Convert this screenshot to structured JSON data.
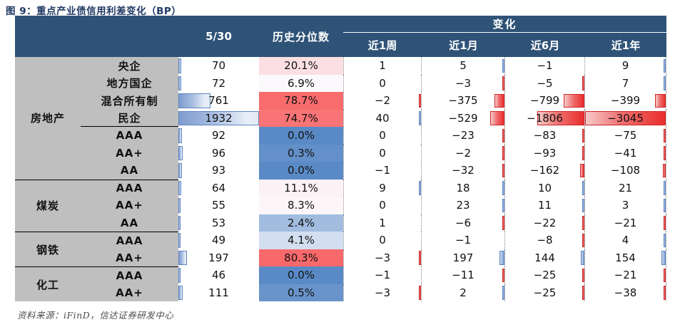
{
  "title": "图 9：重点产业债信用利差变化（BP）",
  "header": {
    "date_col": "5/30",
    "percentile_col": "历史分位数",
    "change_group": "变化",
    "change_cols": [
      "近1周",
      "近1月",
      "近6月",
      "近1年"
    ]
  },
  "groups": [
    {
      "name": "房地产",
      "rows": [
        {
          "label": "央企",
          "value": 70,
          "pct_label": "20.1%",
          "pct_value": 20.1,
          "changes": [
            1,
            5,
            -1,
            9
          ]
        },
        {
          "label": "地方国企",
          "value": 72,
          "pct_label": "6.9%",
          "pct_value": 6.9,
          "changes": [
            0,
            -3,
            -5,
            7
          ]
        },
        {
          "label": "混合所有制",
          "value": 761,
          "pct_label": "78.7%",
          "pct_value": 78.7,
          "changes": [
            -2,
            -375,
            -799,
            -399
          ]
        },
        {
          "label": "民企",
          "value": 1932,
          "pct_label": "74.7%",
          "pct_value": 74.7,
          "changes": [
            40,
            -529,
            -1806,
            -3045
          ],
          "divider_below": true
        },
        {
          "label": "AAA",
          "value": 92,
          "pct_label": "0.0%",
          "pct_value": 0.0,
          "changes": [
            0,
            -23,
            -83,
            -75
          ]
        },
        {
          "label": "AA+",
          "value": 96,
          "pct_label": "0.3%",
          "pct_value": 0.3,
          "changes": [
            0,
            -2,
            -93,
            -41
          ]
        },
        {
          "label": "AA",
          "value": 93,
          "pct_label": "0.0%",
          "pct_value": 0.0,
          "changes": [
            -1,
            -32,
            -162,
            -108
          ]
        }
      ]
    },
    {
      "name": "煤炭",
      "rows": [
        {
          "label": "AAA",
          "value": 64,
          "pct_label": "11.1%",
          "pct_value": 11.1,
          "changes": [
            9,
            18,
            10,
            21
          ]
        },
        {
          "label": "AA+",
          "value": 55,
          "pct_label": "8.3%",
          "pct_value": 8.3,
          "changes": [
            0,
            23,
            11,
            3
          ]
        },
        {
          "label": "AA",
          "value": 53,
          "pct_label": "2.4%",
          "pct_value": 2.4,
          "changes": [
            1,
            -6,
            -22,
            -21
          ]
        }
      ]
    },
    {
      "name": "钢铁",
      "rows": [
        {
          "label": "AAA",
          "value": 49,
          "pct_label": "4.1%",
          "pct_value": 4.1,
          "changes": [
            0,
            -1,
            -8,
            4
          ]
        },
        {
          "label": "AA+",
          "value": 197,
          "pct_label": "80.3%",
          "pct_value": 80.3,
          "changes": [
            -3,
            197,
            144,
            154
          ]
        }
      ]
    },
    {
      "name": "化工",
      "rows": [
        {
          "label": "AAA",
          "value": 46,
          "pct_label": "0.0%",
          "pct_value": 0.0,
          "changes": [
            -1,
            -11,
            -25,
            -21
          ]
        },
        {
          "label": "AA+",
          "value": 111,
          "pct_label": "0.5%",
          "pct_value": 0.5,
          "changes": [
            -3,
            2,
            -25,
            -38
          ]
        }
      ]
    }
  ],
  "scales": {
    "value_bar_max": 1932,
    "change_bar_max": 3045,
    "percentile": {
      "min": 0,
      "mid": 5.5,
      "max": 80.3,
      "color_min": "#5A8AC6",
      "color_mid": "#FCFCFF",
      "color_max": "#F8696B"
    }
  },
  "colors": {
    "header_bg": "#2F5377",
    "label_bg": "#BFBFBF",
    "title_color": "#1F3864",
    "neg_bar": "#EA2E2E",
    "pos_bar": "#7FA0D2",
    "value_bar": "#7E9CCF"
  },
  "footer": "资料来源：iFinD，信达证券研发中心"
}
